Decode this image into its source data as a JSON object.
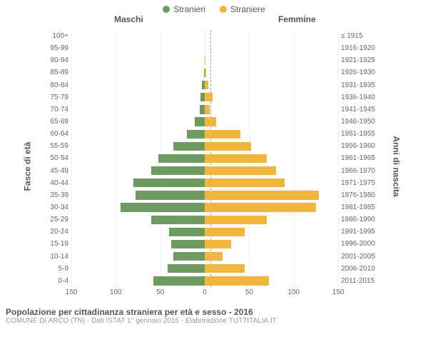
{
  "legend": {
    "male": {
      "label": "Stranieri",
      "color": "#6d9a5f"
    },
    "female": {
      "label": "Straniere",
      "color": "#f2b63c"
    }
  },
  "header_left": "Maschi",
  "header_right": "Femmine",
  "y_left_axis": "Fasce di età",
  "y_right_axis": "Anni di nascita",
  "chart": {
    "type": "population-pyramid",
    "xmax": 150,
    "xticks": [
      150,
      100,
      50,
      0,
      50,
      100,
      150
    ],
    "grid_color": "#eeeeee",
    "center_line_color": "#999999",
    "rows": [
      {
        "age": "100+",
        "birth": "≤ 1915",
        "m": 0,
        "f": 0
      },
      {
        "age": "95-99",
        "birth": "1916-1920",
        "m": 0,
        "f": 0
      },
      {
        "age": "90-94",
        "birth": "1921-1925",
        "m": 0,
        "f": 1
      },
      {
        "age": "85-89",
        "birth": "1926-1930",
        "m": 1,
        "f": 2
      },
      {
        "age": "80-84",
        "birth": "1931-1935",
        "m": 3,
        "f": 4
      },
      {
        "age": "75-79",
        "birth": "1936-1940",
        "m": 5,
        "f": 9
      },
      {
        "age": "70-74",
        "birth": "1941-1945",
        "m": 6,
        "f": 6
      },
      {
        "age": "65-69",
        "birth": "1946-1950",
        "m": 11,
        "f": 13
      },
      {
        "age": "60-64",
        "birth": "1951-1955",
        "m": 20,
        "f": 40
      },
      {
        "age": "55-59",
        "birth": "1956-1960",
        "m": 35,
        "f": 52
      },
      {
        "age": "50-54",
        "birth": "1961-1965",
        "m": 52,
        "f": 70
      },
      {
        "age": "45-49",
        "birth": "1966-1970",
        "m": 60,
        "f": 80
      },
      {
        "age": "40-44",
        "birth": "1971-1975",
        "m": 80,
        "f": 90
      },
      {
        "age": "35-39",
        "birth": "1976-1980",
        "m": 78,
        "f": 128
      },
      {
        "age": "30-34",
        "birth": "1981-1985",
        "m": 95,
        "f": 125
      },
      {
        "age": "25-29",
        "birth": "1986-1990",
        "m": 60,
        "f": 70
      },
      {
        "age": "20-24",
        "birth": "1991-1995",
        "m": 40,
        "f": 45
      },
      {
        "age": "15-19",
        "birth": "1996-2000",
        "m": 38,
        "f": 30
      },
      {
        "age": "10-14",
        "birth": "2001-2005",
        "m": 35,
        "f": 20
      },
      {
        "age": "5-9",
        "birth": "2006-2010",
        "m": 42,
        "f": 45
      },
      {
        "age": "0-4",
        "birth": "2011-2015",
        "m": 58,
        "f": 72
      }
    ]
  },
  "footer_title": "Popolazione per cittadinanza straniera per età e sesso - 2016",
  "footer_sub": "COMUNE DI ARCO (TN) - Dati ISTAT 1° gennaio 2016 - Elaborazione TUTTITALIA.IT"
}
